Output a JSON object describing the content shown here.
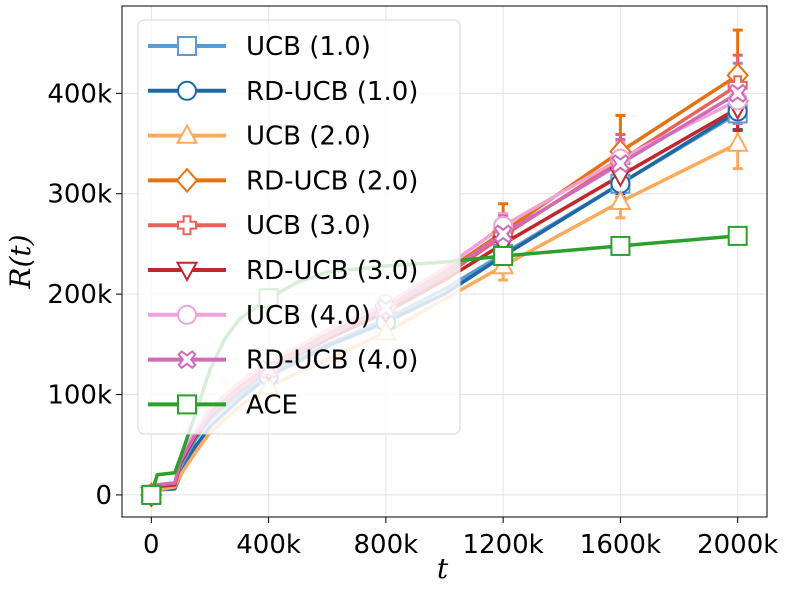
{
  "chart_data": {
    "type": "line",
    "xlabel": "t",
    "ylabel": "R(t)",
    "xlim": [
      -100000,
      2100000
    ],
    "ylim": [
      -22000,
      487000
    ],
    "x_ticks": [
      0,
      400000,
      800000,
      1200000,
      1600000,
      2000000
    ],
    "x_tick_labels": [
      "0",
      "400k",
      "800k",
      "1200k",
      "1600k",
      "2000k"
    ],
    "y_ticks": [
      0,
      100000,
      200000,
      300000,
      400000
    ],
    "y_tick_labels": [
      "0",
      "100k",
      "200k",
      "300k",
      "400k"
    ],
    "grid": true,
    "legend_position": "upper-left",
    "marker_x": [
      0,
      400000,
      800000,
      1200000,
      1600000,
      2000000
    ],
    "series": [
      {
        "name": "UCB (1.0)",
        "color": "#5b9bd0",
        "marker": "square",
        "curve": [
          [
            0,
            0
          ],
          [
            20000,
            5000
          ],
          [
            80000,
            7000
          ],
          [
            100000,
            25000
          ],
          [
            150000,
            55000
          ],
          [
            200000,
            75000
          ],
          [
            300000,
            100000
          ],
          [
            400000,
            120000
          ],
          [
            600000,
            150000
          ],
          [
            800000,
            175000
          ],
          [
            1000000,
            205000
          ],
          [
            1200000,
            240000
          ],
          [
            1600000,
            310000
          ],
          [
            2000000,
            380000
          ]
        ],
        "values": [
          0,
          120000,
          175000,
          240000,
          310000,
          380000
        ]
      },
      {
        "name": "RD-UCB (1.0)",
        "color": "#1f68a8",
        "marker": "circle",
        "curve": [
          [
            0,
            0
          ],
          [
            20000,
            5000
          ],
          [
            80000,
            6000
          ],
          [
            100000,
            20000
          ],
          [
            150000,
            48000
          ],
          [
            200000,
            68000
          ],
          [
            300000,
            95000
          ],
          [
            400000,
            118000
          ],
          [
            600000,
            148000
          ],
          [
            800000,
            172000
          ],
          [
            1000000,
            200000
          ],
          [
            1200000,
            238000
          ],
          [
            1600000,
            310000
          ],
          [
            2000000,
            382000
          ]
        ],
        "values": [
          0,
          118000,
          172000,
          238000,
          310000,
          382000
        ],
        "errors": [
          0,
          0,
          0,
          14000,
          14000,
          18000
        ]
      },
      {
        "name": "UCB (2.0)",
        "color": "#fdaa5c",
        "marker": "triangle-up",
        "curve": [
          [
            0,
            0
          ],
          [
            20000,
            5000
          ],
          [
            80000,
            8000
          ],
          [
            100000,
            20000
          ],
          [
            150000,
            42000
          ],
          [
            200000,
            62000
          ],
          [
            300000,
            88000
          ],
          [
            400000,
            108000
          ],
          [
            600000,
            135000
          ],
          [
            800000,
            162000
          ],
          [
            1000000,
            195000
          ],
          [
            1200000,
            228000
          ],
          [
            1600000,
            292000
          ],
          [
            2000000,
            350000
          ]
        ],
        "values": [
          0,
          108000,
          162000,
          228000,
          292000,
          350000
        ],
        "errors": [
          0,
          0,
          0,
          14000,
          16000,
          25000
        ]
      },
      {
        "name": "RD-UCB (2.0)",
        "color": "#e8700f",
        "marker": "diamond",
        "curve": [
          [
            0,
            0
          ],
          [
            20000,
            8000
          ],
          [
            80000,
            10000
          ],
          [
            100000,
            35000
          ],
          [
            150000,
            62000
          ],
          [
            200000,
            82000
          ],
          [
            300000,
            108000
          ],
          [
            400000,
            128000
          ],
          [
            600000,
            160000
          ],
          [
            800000,
            188000
          ],
          [
            1000000,
            222000
          ],
          [
            1200000,
            262000
          ],
          [
            1600000,
            342000
          ],
          [
            2000000,
            418000
          ]
        ],
        "values": [
          0,
          128000,
          188000,
          262000,
          342000,
          418000
        ],
        "errors": [
          0,
          0,
          0,
          28000,
          36000,
          45000
        ]
      },
      {
        "name": "UCB (3.0)",
        "color": "#e8625b",
        "marker": "plus",
        "curve": [
          [
            0,
            0
          ],
          [
            20000,
            9000
          ],
          [
            80000,
            11000
          ],
          [
            100000,
            34000
          ],
          [
            150000,
            60000
          ],
          [
            200000,
            80000
          ],
          [
            300000,
            106000
          ],
          [
            400000,
            126000
          ],
          [
            600000,
            158000
          ],
          [
            800000,
            185000
          ],
          [
            1000000,
            218000
          ],
          [
            1200000,
            258000
          ],
          [
            1600000,
            333000
          ],
          [
            2000000,
            408000
          ]
        ],
        "values": [
          0,
          126000,
          185000,
          258000,
          333000,
          408000
        ],
        "errors": [
          0,
          0,
          0,
          22000,
          26000,
          30000
        ]
      },
      {
        "name": "RD-UCB (3.0)",
        "color": "#c2272d",
        "marker": "triangle-down",
        "curve": [
          [
            0,
            0
          ],
          [
            20000,
            9000
          ],
          [
            80000,
            10000
          ],
          [
            100000,
            32000
          ],
          [
            150000,
            58000
          ],
          [
            200000,
            78000
          ],
          [
            300000,
            104000
          ],
          [
            400000,
            124000
          ],
          [
            600000,
            155000
          ],
          [
            800000,
            182000
          ],
          [
            1000000,
            214000
          ],
          [
            1200000,
            250000
          ],
          [
            1600000,
            318000
          ],
          [
            2000000,
            385000
          ]
        ],
        "values": [
          0,
          124000,
          182000,
          250000,
          318000,
          385000
        ],
        "errors": [
          0,
          0,
          0,
          16000,
          18000,
          22000
        ]
      },
      {
        "name": "UCB (4.0)",
        "color": "#f0a3d8",
        "marker": "circle",
        "curve": [
          [
            0,
            0
          ],
          [
            20000,
            10000
          ],
          [
            80000,
            12000
          ],
          [
            100000,
            36000
          ],
          [
            150000,
            64000
          ],
          [
            200000,
            86000
          ],
          [
            300000,
            112000
          ],
          [
            400000,
            132000
          ],
          [
            600000,
            164000
          ],
          [
            800000,
            190000
          ],
          [
            1000000,
            226000
          ],
          [
            1200000,
            268000
          ],
          [
            1600000,
            335000
          ],
          [
            2000000,
            393000
          ]
        ],
        "values": [
          0,
          132000,
          190000,
          268000,
          335000,
          393000
        ],
        "errors": [
          0,
          0,
          0,
          12000,
          16000,
          18000
        ]
      },
      {
        "name": "RD-UCB (4.0)",
        "color": "#cf6bb8",
        "marker": "x",
        "curve": [
          [
            0,
            0
          ],
          [
            20000,
            10000
          ],
          [
            80000,
            12000
          ],
          [
            100000,
            34000
          ],
          [
            150000,
            60000
          ],
          [
            200000,
            80000
          ],
          [
            300000,
            105000
          ],
          [
            400000,
            125000
          ],
          [
            600000,
            158000
          ],
          [
            800000,
            186000
          ],
          [
            1000000,
            220000
          ],
          [
            1200000,
            260000
          ],
          [
            1600000,
            330000
          ],
          [
            2000000,
            400000
          ]
        ],
        "values": [
          0,
          125000,
          186000,
          260000,
          330000,
          400000
        ],
        "errors": [
          0,
          0,
          0,
          18000,
          24000,
          30000
        ]
      },
      {
        "name": "ACE",
        "color": "#2ca02c",
        "marker": "square",
        "curve": [
          [
            0,
            0
          ],
          [
            20000,
            20000
          ],
          [
            80000,
            22000
          ],
          [
            100000,
            38000
          ],
          [
            150000,
            80000
          ],
          [
            200000,
            125000
          ],
          [
            250000,
            155000
          ],
          [
            300000,
            175000
          ],
          [
            400000,
            196000
          ],
          [
            500000,
            212000
          ],
          [
            600000,
            222000
          ],
          [
            800000,
            228000
          ],
          [
            1000000,
            232000
          ],
          [
            1200000,
            238000
          ],
          [
            1600000,
            248000
          ],
          [
            2000000,
            258000
          ]
        ],
        "values": [
          0,
          196000,
          null,
          238000,
          248000,
          258000
        ]
      }
    ]
  }
}
